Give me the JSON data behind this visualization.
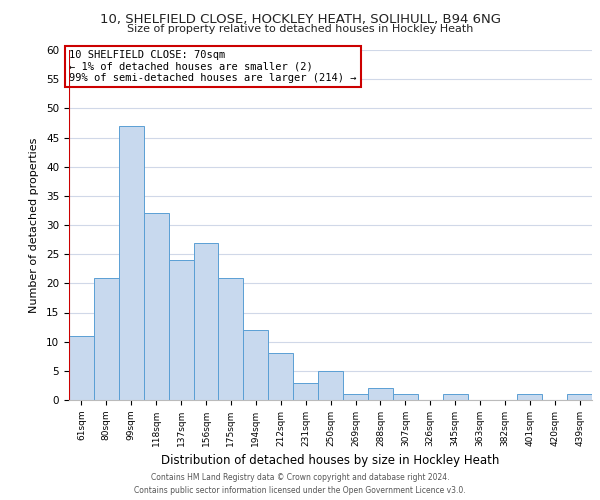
{
  "title": "10, SHELFIELD CLOSE, HOCKLEY HEATH, SOLIHULL, B94 6NG",
  "subtitle": "Size of property relative to detached houses in Hockley Heath",
  "xlabel": "Distribution of detached houses by size in Hockley Heath",
  "ylabel": "Number of detached properties",
  "bar_color": "#c8d9ee",
  "bar_edge_color": "#5a9fd4",
  "highlight_edge_color": "#cc0000",
  "categories": [
    "61sqm",
    "80sqm",
    "99sqm",
    "118sqm",
    "137sqm",
    "156sqm",
    "175sqm",
    "194sqm",
    "212sqm",
    "231sqm",
    "250sqm",
    "269sqm",
    "288sqm",
    "307sqm",
    "326sqm",
    "345sqm",
    "363sqm",
    "382sqm",
    "401sqm",
    "420sqm",
    "439sqm"
  ],
  "values": [
    11,
    21,
    47,
    32,
    24,
    27,
    21,
    12,
    8,
    3,
    5,
    1,
    2,
    1,
    0,
    1,
    0,
    0,
    1,
    0,
    1
  ],
  "highlight_bar_index": 0,
  "ylim": [
    0,
    60
  ],
  "yticks": [
    0,
    5,
    10,
    15,
    20,
    25,
    30,
    35,
    40,
    45,
    50,
    55,
    60
  ],
  "annotation_title": "10 SHELFIELD CLOSE: 70sqm",
  "annotation_line1": "← 1% of detached houses are smaller (2)",
  "annotation_line2": "99% of semi-detached houses are larger (214) →",
  "footer_line1": "Contains HM Land Registry data © Crown copyright and database right 2024.",
  "footer_line2": "Contains public sector information licensed under the Open Government Licence v3.0.",
  "background_color": "#ffffff",
  "grid_color": "#d0d8e8"
}
